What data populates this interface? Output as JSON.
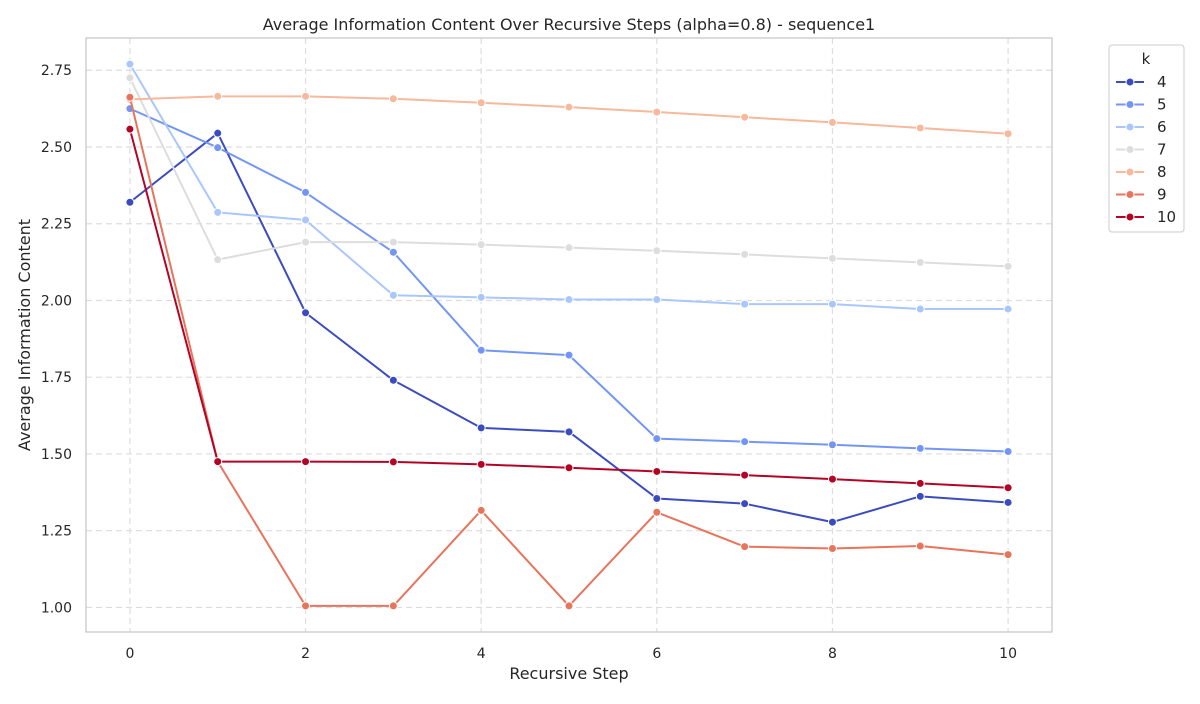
{
  "chart_data": {
    "type": "line",
    "title": "Average Information Content Over Recursive Steps (alpha=0.8) - sequence1",
    "xlabel": "Recursive Step",
    "ylabel": "Average Information Content",
    "xlim": [
      -0.5,
      10.5
    ],
    "ylim": [
      0.92,
      2.855
    ],
    "xticks": [
      0,
      2,
      4,
      6,
      8,
      10
    ],
    "yticks": [
      1.0,
      1.25,
      1.5,
      1.75,
      2.0,
      2.25,
      2.5,
      2.75
    ],
    "ytick_labels": [
      "1.00",
      "1.25",
      "1.50",
      "1.75",
      "2.00",
      "2.25",
      "2.50",
      "2.75"
    ],
    "grid": true,
    "legend_title": "k",
    "legend_position": "top-right outside",
    "x": [
      0,
      1,
      2,
      3,
      4,
      5,
      6,
      7,
      8,
      9,
      10
    ],
    "series": [
      {
        "name": "4",
        "color": "#3b4cc0",
        "values": [
          2.32,
          2.545,
          1.96,
          1.74,
          1.585,
          1.572,
          1.355,
          1.338,
          1.278,
          1.362,
          1.342
        ]
      },
      {
        "name": "5",
        "color": "#7396f5",
        "values": [
          2.625,
          2.498,
          2.352,
          2.157,
          1.838,
          1.822,
          1.55,
          1.54,
          1.53,
          1.518,
          1.508
        ]
      },
      {
        "name": "6",
        "color": "#aac7fd",
        "values": [
          2.77,
          2.287,
          2.262,
          2.017,
          2.01,
          2.003,
          2.003,
          1.988,
          1.988,
          1.972,
          1.972
        ]
      },
      {
        "name": "7",
        "color": "#dddddd",
        "values": [
          2.725,
          2.133,
          2.19,
          2.19,
          2.182,
          2.172,
          2.162,
          2.15,
          2.137,
          2.124,
          2.111
        ]
      },
      {
        "name": "8",
        "color": "#f7b89c",
        "values": [
          2.655,
          2.665,
          2.665,
          2.657,
          2.644,
          2.63,
          2.614,
          2.597,
          2.58,
          2.562,
          2.543
        ]
      },
      {
        "name": "9",
        "color": "#e7745b",
        "values": [
          2.662,
          1.475,
          1.005,
          1.005,
          1.316,
          1.005,
          1.31,
          1.198,
          1.192,
          1.2,
          1.172
        ]
      },
      {
        "name": "10",
        "color": "#b40426",
        "values": [
          2.558,
          1.475,
          1.475,
          1.474,
          1.466,
          1.455,
          1.443,
          1.431,
          1.418,
          1.404,
          1.39
        ]
      }
    ]
  }
}
